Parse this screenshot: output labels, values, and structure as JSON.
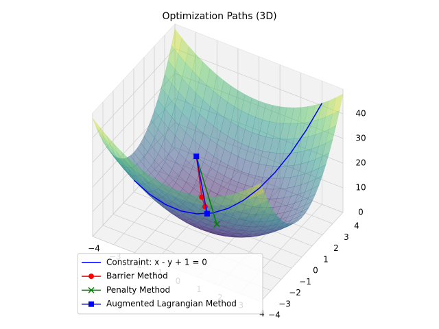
{
  "chart_data": {
    "type": "line3d",
    "title": "Optimization Paths (3D)",
    "xlim": [
      -4,
      4
    ],
    "xticks": [
      {
        "value": -4,
        "label": "−4"
      },
      {
        "value": -3,
        "label": "−3"
      },
      {
        "value": -2,
        "label": "−2"
      },
      {
        "value": -1,
        "label": "−1"
      },
      0,
      1,
      2,
      3,
      4
    ],
    "ylim": [
      -4,
      4
    ],
    "yticks": [
      {
        "value": -4,
        "label": "−4"
      },
      {
        "value": -3,
        "label": "−3"
      },
      {
        "value": -2,
        "label": "−2"
      },
      {
        "value": -1,
        "label": "−1"
      },
      0,
      1,
      2,
      3,
      4
    ],
    "zlim": [
      0,
      50
    ],
    "zticks": [
      0,
      10,
      20,
      30,
      40
    ],
    "grid": true,
    "legend": "lower left",
    "series": [
      {
        "name": "Constraint: x - y + 1 = 0",
        "color": "#0000ff",
        "marker": "none",
        "x": [
          -3,
          -2.5,
          -2,
          -1.5,
          -1,
          -0.5,
          0,
          0.5,
          1,
          1.5,
          2,
          2.5,
          3
        ],
        "y": [
          -2,
          -1.5,
          -1,
          -0.5,
          0,
          0.5,
          1,
          1.5,
          2,
          2.5,
          3,
          3.5,
          4
        ],
        "z": [
          17,
          10.75,
          6,
          2.75,
          1,
          0.75,
          2,
          4.75,
          9,
          14.75,
          22,
          30.75,
          41
        ]
      },
      {
        "name": "Barrier Method",
        "color": "#ff0000",
        "marker": "circle",
        "x": [
          -2,
          -1.2,
          -0.9,
          -0.7
        ],
        "y": [
          2,
          0.9,
          0.6,
          0.35
        ],
        "z": [
          12,
          3.06,
          1.53,
          0.735
        ]
      },
      {
        "name": "Penalty Method",
        "color": "#008000",
        "marker": "x",
        "x": [
          -2,
          -0.05
        ],
        "y": [
          2,
          0
        ],
        "z": [
          12,
          0.0025
        ]
      },
      {
        "name": "Augmented Lagrangian Method",
        "color": "#0000ff",
        "marker": "square",
        "x": [
          -2,
          -0.67
        ],
        "y": [
          2,
          0.33
        ],
        "z": [
          12,
          0.67
        ]
      }
    ]
  }
}
